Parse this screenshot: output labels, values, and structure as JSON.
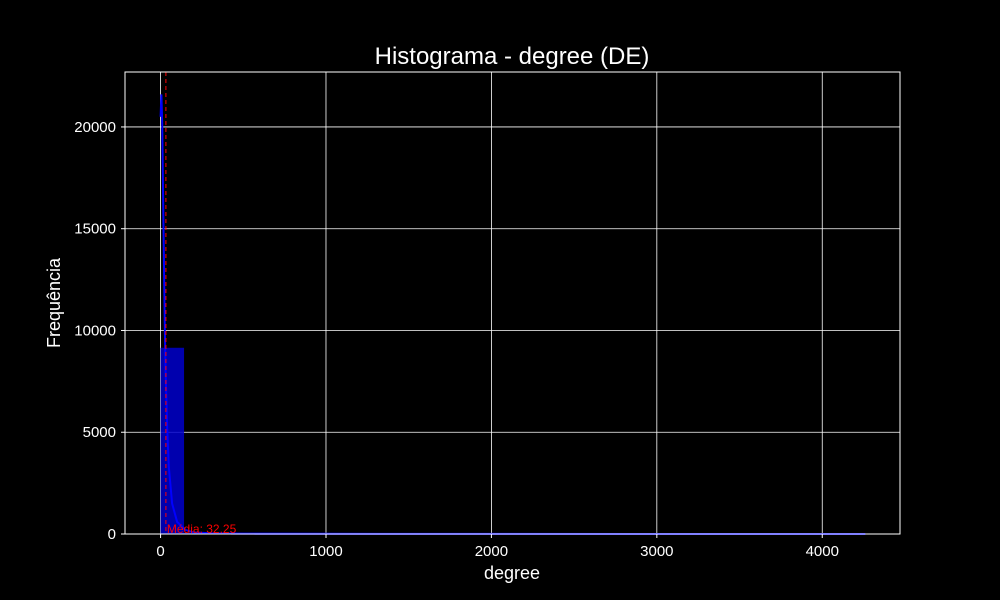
{
  "chart_data": {
    "type": "bar",
    "title": "Histograma - degree (DE)",
    "xlabel": "degree",
    "ylabel": "Frequência",
    "xlim": [
      -215,
      4470
    ],
    "ylim": [
      0,
      22700
    ],
    "x_ticks": [
      0,
      1000,
      2000,
      3000,
      4000
    ],
    "y_ticks": [
      0,
      5000,
      10000,
      15000,
      20000
    ],
    "grid": true,
    "bins": [
      {
        "x0": 0,
        "x1": 142,
        "value": 9150
      },
      {
        "x0": 142,
        "x1": 284,
        "value": 60
      },
      {
        "x0": 284,
        "x1": 426,
        "value": 25
      },
      {
        "x0": 426,
        "x1": 568,
        "value": 15
      },
      {
        "x0": 568,
        "x1": 4260,
        "value": 3
      }
    ],
    "kde": {
      "x": [
        0,
        5,
        10,
        15,
        20,
        25,
        30,
        40,
        50,
        70,
        100,
        150,
        200,
        300,
        500,
        1000,
        2000,
        3000,
        4260
      ],
      "y": [
        20500,
        21600,
        20200,
        17000,
        13500,
        10500,
        8200,
        5200,
        3300,
        1500,
        600,
        200,
        80,
        40,
        20,
        10,
        5,
        2,
        1
      ]
    },
    "mean": {
      "value": 32.25,
      "label": "Média: 32.25"
    },
    "colors": {
      "background": "#000000",
      "bars": "#0000cd",
      "kde_line": "#0000ff",
      "mean_line": "#ff0000",
      "grid": "#ffffff",
      "text": "#ffffff"
    }
  }
}
